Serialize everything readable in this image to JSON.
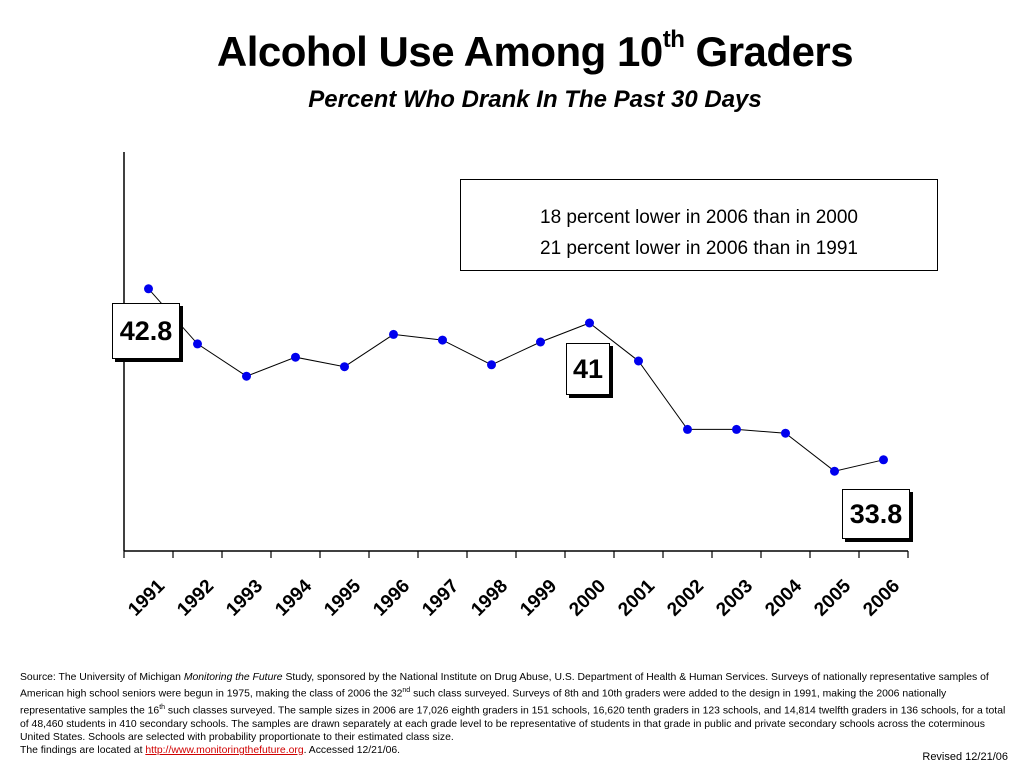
{
  "title": {
    "main": "Alcohol Use Among 10",
    "sup": "th",
    "end": " Graders"
  },
  "subtitle": "Percent Who Drank In The Past 30 Days",
  "annotations": {
    "line1": "18 percent lower in 2006 than in 2000",
    "line2": "21 percent lower in 2006 than in 1991"
  },
  "callouts": {
    "c1991": "42.8",
    "c2000": "41",
    "c2006": "33.8"
  },
  "chart_data": {
    "type": "line",
    "categories": [
      "1991",
      "1992",
      "1993",
      "1994",
      "1995",
      "1996",
      "1997",
      "1998",
      "1999",
      "2000",
      "2001",
      "2002",
      "2003",
      "2004",
      "2005",
      "2006"
    ],
    "series": [
      {
        "values": [
          42.8,
          39.9,
          38.2,
          39.2,
          38.7,
          40.4,
          40.1,
          38.8,
          40.0,
          41.0,
          39.0,
          35.4,
          35.4,
          35.2,
          33.2,
          33.8
        ]
      }
    ],
    "ylim": [
      29,
      50
    ],
    "line_color": "#000000",
    "marker_color": "#0000ee"
  },
  "source": {
    "prefix": "Source: The University of Michigan ",
    "study": "Monitoring the Future",
    "p1": " Study, sponsored by the National Institute on Drug Abuse, U.S. Department of Health & Human Services. Surveys of nationally representative samples of American high school seniors were begun in 1975, making the class of 2006 the 32",
    "sup1": "nd",
    "p2": " such class surveyed. Surveys of 8th and 10th graders were added to the design in 1991, making the 2006 nationally representative samples the 16",
    "sup2": "th",
    "p3": " such classes surveyed. The sample sizes in 2006 are 17,026 eighth graders in 151 schools, 16,620 tenth graders in 123 schools, and 14,814 twelfth graders in 136 schools, for a total of 48,460 students in 410 secondary schools. The samples are drawn separately at each grade level to be representative of students in that grade in public and private secondary schools across the coterminous United States. Schools are selected with probability proportionate to their estimated class size.",
    "findings_prefix": "The findings are located at ",
    "link": "http://www.monitoringthefuture.org",
    "accessed": ".  Accessed 12/21/06."
  },
  "revised": "Revised 12/21/06"
}
